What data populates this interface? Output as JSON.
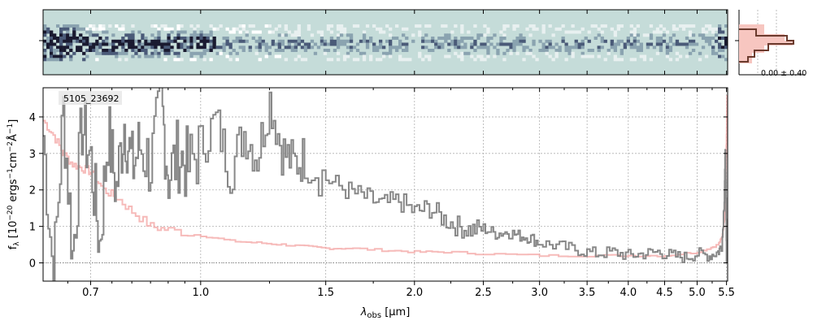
{
  "chart_data": {
    "type": "line",
    "object_label": "5105_23692",
    "xlabel_base": "λ",
    "xlabel_sub": "obs",
    "xlabel_unit": " [μm]",
    "ylabel_parts": [
      "f",
      "λ",
      " [10",
      "−20",
      " ergs",
      "−1",
      "cm",
      "−2",
      "Å",
      "−1",
      "]"
    ],
    "x_scale": "log",
    "xlim": [
      0.6,
      5.52
    ],
    "ylim": [
      -0.5,
      4.8
    ],
    "x_ticks": [
      0.7,
      1.0,
      1.5,
      2.0,
      2.5,
      3.0,
      3.5,
      4.0,
      4.5,
      5.0,
      5.5
    ],
    "x_tick_labels": [
      "0.7",
      "1.0",
      "1.5",
      "2.0",
      "2.5",
      "3.0",
      "3.5",
      "4.0",
      "4.5",
      "5.0",
      "5.5"
    ],
    "y_ticks": [
      0,
      1,
      2,
      3,
      4
    ],
    "y_tick_labels": [
      "0",
      "1",
      "2",
      "3",
      "4"
    ],
    "grid": true,
    "inset_label": "0.00 ± 0.40",
    "colors": {
      "data": "#888888",
      "model": "#f4a9a8",
      "profile_fill": "#f7c6c0",
      "profile_line": "#6b3b2e",
      "image_bg": "#c5dcd9",
      "image_dark": "#1a1a30",
      "grid": "#b0b0b0"
    },
    "series": [
      {
        "kind": "data",
        "x": [
          0.6,
          0.62,
          0.64,
          0.66,
          0.68,
          0.7,
          0.72,
          0.74,
          0.76,
          0.78,
          0.8,
          0.82,
          0.85,
          0.88,
          0.9,
          0.93,
          0.96,
          1.0,
          1.05,
          1.1,
          1.15,
          1.2,
          1.25,
          1.3,
          1.35,
          1.4,
          1.5,
          1.6,
          1.7,
          1.8,
          1.9,
          2.0,
          2.1,
          2.2,
          2.3,
          2.4,
          2.5,
          2.6,
          2.7,
          2.8,
          2.9,
          3.0,
          3.2,
          3.4,
          3.6,
          3.8,
          4.0,
          4.2,
          4.4,
          4.6,
          4.8,
          5.0,
          5.2,
          5.35,
          5.42,
          5.46,
          5.48,
          5.5
        ],
        "y": [
          3.5,
          -0.5,
          4.2,
          0.2,
          3.8,
          2.8,
          0.5,
          3.6,
          2.0,
          3.9,
          2.6,
          3.2,
          2.7,
          4.3,
          2.4,
          3.0,
          2.6,
          3.2,
          3.9,
          2.5,
          3.6,
          2.9,
          4.5,
          3.1,
          2.7,
          2.9,
          2.3,
          2.0,
          1.8,
          1.6,
          1.7,
          1.4,
          1.5,
          1.2,
          1.0,
          0.9,
          0.95,
          0.8,
          0.85,
          0.75,
          0.7,
          0.55,
          0.45,
          0.35,
          0.25,
          0.3,
          0.2,
          0.25,
          0.3,
          0.2,
          0.15,
          0.25,
          0.2,
          0.3,
          0.5,
          1.8,
          3.2,
          0.0
        ]
      },
      {
        "kind": "model",
        "x": [
          0.6,
          0.62,
          0.64,
          0.66,
          0.68,
          0.7,
          0.73,
          0.76,
          0.8,
          0.85,
          0.9,
          1.0,
          1.1,
          1.2,
          1.3,
          1.4,
          1.5,
          1.6,
          1.8,
          2.0,
          2.2,
          2.5,
          3.0,
          3.5,
          4.0,
          4.5,
          5.0,
          5.2,
          5.35,
          5.42,
          5.46,
          5.48,
          5.5,
          5.51
        ],
        "y": [
          3.9,
          3.5,
          3.0,
          2.7,
          2.6,
          2.5,
          2.0,
          1.8,
          1.4,
          1.0,
          0.9,
          0.75,
          0.6,
          0.55,
          0.5,
          0.45,
          0.4,
          0.4,
          0.35,
          0.3,
          0.3,
          0.25,
          0.2,
          0.2,
          0.2,
          0.2,
          0.3,
          0.4,
          0.5,
          0.7,
          1.2,
          2.0,
          3.5,
          4.6
        ]
      }
    ]
  }
}
